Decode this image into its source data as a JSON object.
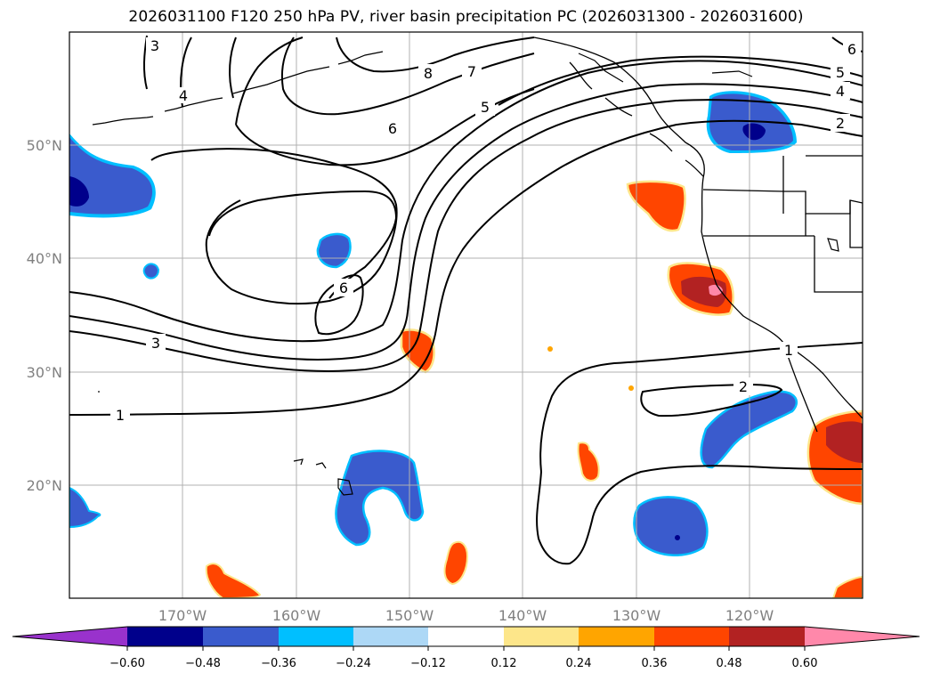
{
  "title": "2026031100 F120 250 hPa PV, river basin precipitation PC (2026031300 - 2026031600)",
  "map": {
    "projection": "PlateCarree",
    "lon_range": [
      -180,
      -110
    ],
    "lat_range": [
      10,
      60
    ],
    "lon_ticks": [
      {
        "value": -170,
        "label": "170°W"
      },
      {
        "value": -160,
        "label": "160°W"
      },
      {
        "value": -150,
        "label": "150°W"
      },
      {
        "value": -140,
        "label": "140°W"
      },
      {
        "value": -130,
        "label": "130°W"
      },
      {
        "value": -120,
        "label": "120°W"
      }
    ],
    "lat_ticks": [
      {
        "value": 50,
        "label": "50°N"
      },
      {
        "value": 40,
        "label": "40°N"
      },
      {
        "value": 30,
        "label": "30°N"
      },
      {
        "value": 20,
        "label": "20°N"
      }
    ],
    "gridlines": true
  },
  "pv_contour_labels": [
    "1",
    "2",
    "3",
    "3",
    "4",
    "5",
    "6",
    "6",
    "7",
    "8",
    "1",
    "2",
    "4",
    "5",
    "6"
  ],
  "colorbar": {
    "ticks": [
      "−0.60",
      "−0.48",
      "−0.36",
      "−0.24",
      "−0.12",
      "0.12",
      "0.24",
      "0.36",
      "0.48",
      "0.60"
    ],
    "colors": [
      "#9932cc",
      "#00008b",
      "#3a5bcd",
      "#00bfff",
      "#add8f6",
      "#ffffff",
      "#fde68a",
      "#ffa500",
      "#ff4500",
      "#b22222",
      "#ff88aa"
    ],
    "extend": "both"
  },
  "colors": {
    "neg_dark": "#00008b",
    "neg": "#3a5bcd",
    "neg_edge": "#00bfff",
    "pos": "#ff4500",
    "pos_dark": "#b22222",
    "pos_max": "#ff88aa",
    "pos_edge": "#fde68a",
    "grid": "#b0b0b0",
    "contour": "#000000"
  }
}
